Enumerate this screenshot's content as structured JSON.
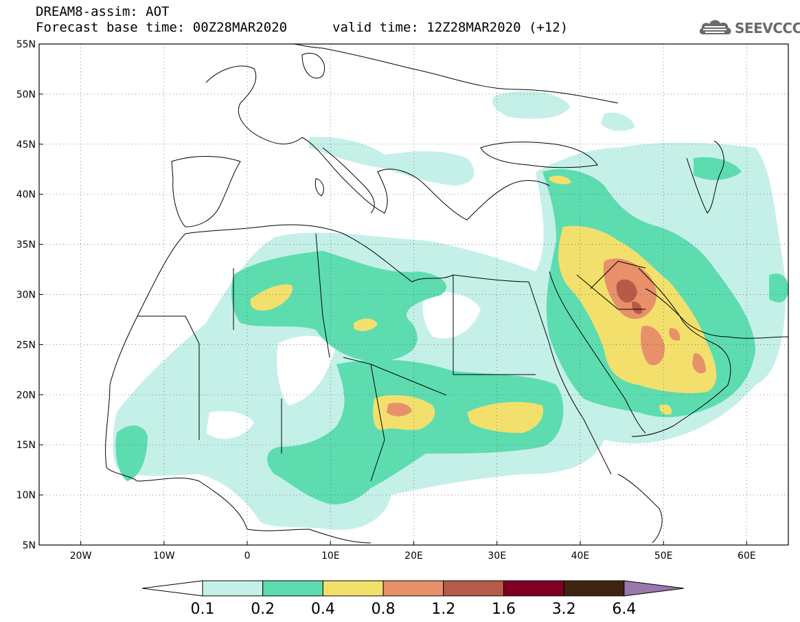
{
  "header": {
    "line1": "DREAM8-assim: AOT",
    "line2": "Forecast base time: 00Z28MAR2020",
    "valid_time": "valid time: 12Z28MAR2020 (+12)"
  },
  "logo": {
    "text": "SEEVCCC",
    "color": "#6a6a6a"
  },
  "map": {
    "lon_range": [
      -25,
      65
    ],
    "lat_range": [
      5,
      55
    ],
    "lat_labels": [
      "55N",
      "50N",
      "45N",
      "40N",
      "35N",
      "30N",
      "25N",
      "20N",
      "15N",
      "10N",
      "5N"
    ],
    "lon_labels": [
      "20W",
      "10W",
      "0",
      "10E",
      "20E",
      "30E",
      "40E",
      "50E",
      "60E"
    ],
    "gridlines": "dotted"
  },
  "colorbar": {
    "labels": [
      "0.1",
      "0.2",
      "0.4",
      "0.8",
      "1.2",
      "1.6",
      "3.2",
      "6.4"
    ],
    "colors": [
      "#c4f0e8",
      "#5ddcb0",
      "#f3e06c",
      "#e7906a",
      "#b75a48",
      "#800024",
      "#3e2410",
      "#9a78ac"
    ],
    "extend": "both"
  }
}
